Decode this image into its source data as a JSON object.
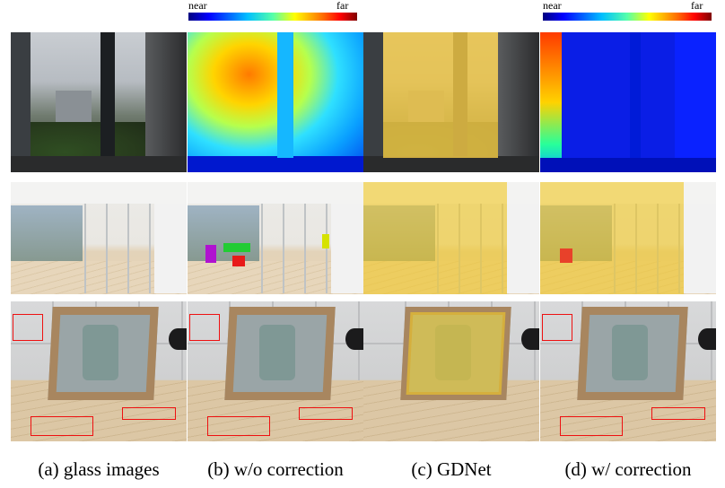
{
  "legend": {
    "near": "near",
    "far": "far"
  },
  "captions": [
    "(a) glass images",
    "(b) w/o correction",
    "(c) GDNet",
    "(d) w/ correction"
  ],
  "colors": {
    "colormap_low": "#00007f",
    "colormap_high": "#7f0000",
    "mask": "#f0c828",
    "box": "#e11111"
  }
}
